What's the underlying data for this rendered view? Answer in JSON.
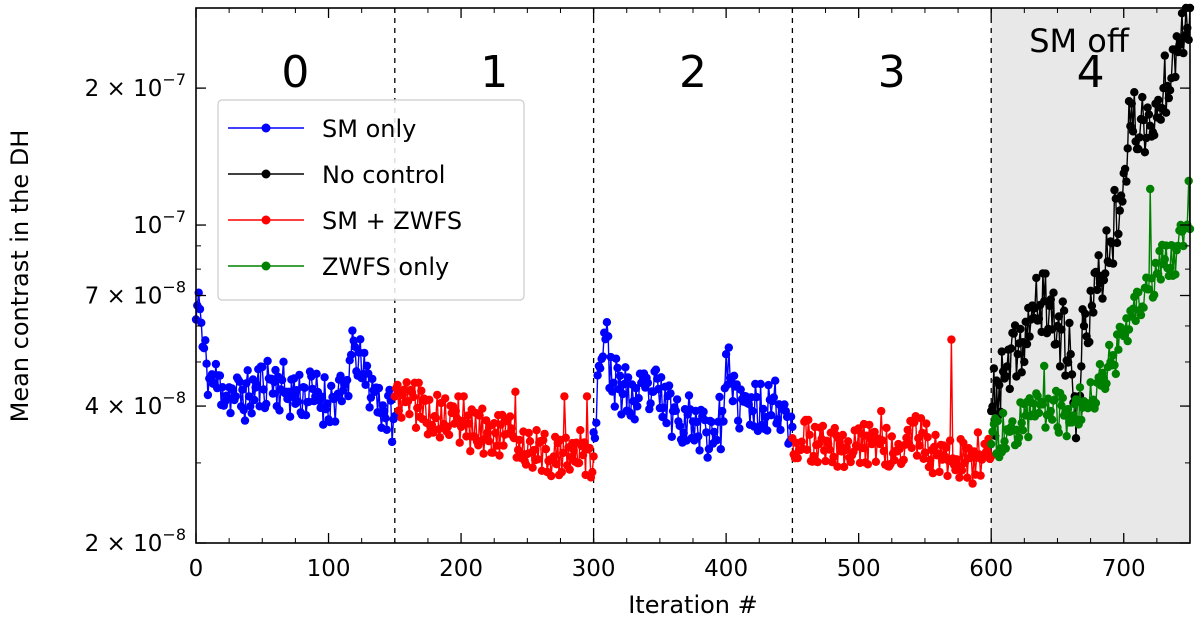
{
  "chart_data": {
    "type": "line",
    "xlabel": "Iteration #",
    "ylabel": "Mean contrast in the DH",
    "xlim": [
      0,
      750
    ],
    "ylim": [
      2e-08,
      3e-07
    ],
    "yscale": "log",
    "x_ticks": [
      0,
      100,
      200,
      300,
      400,
      500,
      600,
      700
    ],
    "x_tick_labels": [
      "0",
      "100",
      "200",
      "300",
      "400",
      "500",
      "600",
      "700"
    ],
    "y_ticks": [
      {
        "value": 2e-08,
        "mantissa": "2 × 10",
        "exp": "−8"
      },
      {
        "value": 4e-08,
        "mantissa": "4 × 10",
        "exp": "−8"
      },
      {
        "value": 7e-08,
        "mantissa": "7 × 10",
        "exp": "−8"
      },
      {
        "value": 1e-07,
        "mantissa": "10",
        "exp": "−7"
      },
      {
        "value": 2e-07,
        "mantissa": "2 × 10",
        "exp": "−7"
      }
    ],
    "phase_boundaries": [
      150,
      300,
      450,
      600
    ],
    "phase_labels": [
      {
        "text": "0",
        "x": 75
      },
      {
        "text": "1",
        "x": 225
      },
      {
        "text": "2",
        "x": 375
      },
      {
        "text": "3",
        "x": 525
      },
      {
        "text": "4",
        "x": 675
      }
    ],
    "shaded_region": {
      "x_start": 600,
      "x_end": 750,
      "label": "SM off",
      "color": "#e8e8e8"
    },
    "legend": {
      "position": "upper-left",
      "entries": [
        {
          "name": "SM only",
          "color": "#0000ff"
        },
        {
          "name": "No control",
          "color": "#000000"
        },
        {
          "name": "SM + ZWFS",
          "color": "#ff0000"
        },
        {
          "name": "ZWFS only",
          "color": "#008000"
        }
      ]
    },
    "series": [
      {
        "name": "SM only",
        "color": "#0000ff",
        "segments": [
          {
            "x_start": 0,
            "x_end": 150,
            "keypoints": [
              [
                0,
                6.2e-08
              ],
              [
                2,
                7.1e-08
              ],
              [
                5,
                5.4e-08
              ],
              [
                10,
                4.6e-08
              ],
              [
                20,
                4.4e-08
              ],
              [
                30,
                4.2e-08
              ],
              [
                40,
                4.2e-08
              ],
              [
                55,
                4.6e-08
              ],
              [
                70,
                4.3e-08
              ],
              [
                90,
                4.2e-08
              ],
              [
                110,
                4.1e-08
              ],
              [
                120,
                5.4e-08
              ],
              [
                126,
                4.7e-08
              ],
              [
                135,
                4.3e-08
              ],
              [
                142,
                3.9e-08
              ],
              [
                150,
                3.8e-08
              ]
            ],
            "noise": 0.06,
            "seed": 11
          },
          {
            "x_start": 300,
            "x_end": 450,
            "keypoints": [
              [
                300,
                3.5e-08
              ],
              [
                304,
                4.9e-08
              ],
              [
                308,
                5.8e-08
              ],
              [
                315,
                4.5e-08
              ],
              [
                330,
                4.1e-08
              ],
              [
                345,
                4.3e-08
              ],
              [
                360,
                3.9e-08
              ],
              [
                375,
                3.7e-08
              ],
              [
                385,
                3.5e-08
              ],
              [
                398,
                3.7e-08
              ],
              [
                400,
                5.2e-08
              ],
              [
                405,
                4.1e-08
              ],
              [
                420,
                3.9e-08
              ],
              [
                435,
                4.1e-08
              ],
              [
                445,
                3.9e-08
              ],
              [
                450,
                3.6e-08
              ]
            ],
            "noise": 0.06,
            "seed": 23
          }
        ]
      },
      {
        "name": "No control",
        "color": "#000000",
        "segments": [
          {
            "x_start": 600,
            "x_end": 750,
            "keypoints": [
              [
                600,
                3.9e-08
              ],
              [
                610,
                4.6e-08
              ],
              [
                620,
                5.2e-08
              ],
              [
                630,
                6.2e-08
              ],
              [
                640,
                6.8e-08
              ],
              [
                650,
                6e-08
              ],
              [
                660,
                5.2e-08
              ],
              [
                664,
                3.4e-08
              ],
              [
                670,
                6e-08
              ],
              [
                680,
                7.2e-08
              ],
              [
                690,
                9.2e-08
              ],
              [
                700,
                1.3e-07
              ],
              [
                705,
                1.65e-07
              ],
              [
                715,
                1.7e-07
              ],
              [
                722,
                1.6e-07
              ],
              [
                730,
                2e-07
              ],
              [
                740,
                2.6e-07
              ],
              [
                750,
                3e-07
              ]
            ],
            "noise": 0.08,
            "seed": 37
          }
        ]
      },
      {
        "name": "SM + ZWFS",
        "color": "#ff0000",
        "segments": [
          {
            "x_start": 150,
            "x_end": 300,
            "keypoints": [
              [
                150,
                4.2e-08
              ],
              [
                160,
                4.1e-08
              ],
              [
                180,
                3.8e-08
              ],
              [
                200,
                3.6e-08
              ],
              [
                220,
                3.5e-08
              ],
              [
                240,
                3.4e-08
              ],
              [
                255,
                3.2e-08
              ],
              [
                270,
                3.1e-08
              ],
              [
                285,
                3.2e-08
              ],
              [
                300,
                3.1e-08
              ]
            ],
            "noise": 0.05,
            "seed": 5,
            "spikes": [
              [
                165,
                4.5e-08
              ],
              [
                168,
                4.5e-08
              ],
              [
                198,
                4.2e-08
              ],
              [
                202,
                4.2e-08
              ],
              [
                241,
                4.3e-08
              ],
              [
                278,
                4.2e-08
              ],
              [
                295,
                4.2e-08
              ]
            ]
          },
          {
            "x_start": 450,
            "x_end": 600,
            "keypoints": [
              [
                450,
                3.4e-08
              ],
              [
                470,
                3.3e-08
              ],
              [
                490,
                3.2e-08
              ],
              [
                510,
                3.3e-08
              ],
              [
                530,
                3.3e-08
              ],
              [
                545,
                3.4e-08
              ],
              [
                555,
                3.2e-08
              ],
              [
                565,
                3.1e-08
              ],
              [
                580,
                3e-08
              ],
              [
                600,
                3.1e-08
              ]
            ],
            "noise": 0.05,
            "seed": 51,
            "spikes": [
              [
                517,
                3.9e-08
              ],
              [
                543,
                3.8e-08
              ],
              [
                570,
                5.6e-08
              ],
              [
                590,
                3.5e-08
              ]
            ]
          }
        ]
      },
      {
        "name": "ZWFS only",
        "color": "#008000",
        "segments": [
          {
            "x_start": 600,
            "x_end": 750,
            "keypoints": [
              [
                600,
                3.3e-08
              ],
              [
                615,
                3.6e-08
              ],
              [
                630,
                3.8e-08
              ],
              [
                645,
                3.9e-08
              ],
              [
                660,
                3.8e-08
              ],
              [
                670,
                4.1e-08
              ],
              [
                680,
                4.5e-08
              ],
              [
                690,
                5e-08
              ],
              [
                700,
                5.7e-08
              ],
              [
                712,
                6.5e-08
              ],
              [
                720,
                7.2e-08
              ],
              [
                730,
                8.2e-08
              ],
              [
                740,
                8.8e-08
              ],
              [
                750,
                9.8e-08
              ]
            ],
            "noise": 0.05,
            "seed": 73,
            "spikes": [
              [
                640,
                4.9e-08
              ],
              [
                720,
                1.2e-07
              ],
              [
                749,
                1.25e-07
              ]
            ]
          }
        ]
      }
    ]
  }
}
